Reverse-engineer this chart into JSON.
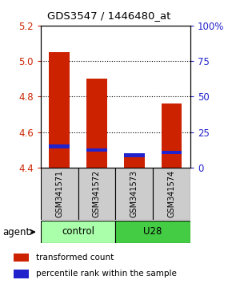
{
  "title": "GDS3547 / 1446480_at",
  "samples": [
    "GSM341571",
    "GSM341572",
    "GSM341573",
    "GSM341574"
  ],
  "red_values": [
    5.05,
    4.9,
    4.48,
    4.76
  ],
  "blue_values": [
    4.52,
    4.5,
    4.47,
    4.485
  ],
  "ymin": 4.4,
  "ymax": 5.2,
  "yticks_left": [
    4.4,
    4.6,
    4.8,
    5.0,
    5.2
  ],
  "yright_labels": [
    "0",
    "25",
    "50",
    "75",
    "100%"
  ],
  "right_tick_positions": [
    4.4,
    4.6,
    4.8,
    5.0,
    5.2
  ],
  "bar_width": 0.55,
  "red_color": "#CC2200",
  "blue_color": "#2222CC",
  "legend_red": "transformed count",
  "legend_blue": "percentile rank within the sample",
  "agent_label": "agent",
  "bar_base": 4.4,
  "control_color": "#aaffaa",
  "u28_color": "#44cc44",
  "sample_box_color": "#cccccc",
  "blue_bar_height": 0.02
}
